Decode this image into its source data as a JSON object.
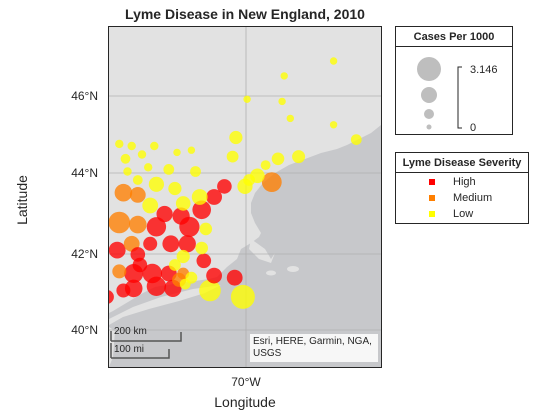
{
  "title": "Lyme Disease in New England, 2010",
  "axes": {
    "xlabel": "Longitude",
    "ylabel": "Latitude",
    "yticks": [
      "46°N",
      "44°N",
      "42°N",
      "40°N"
    ],
    "xticks": [
      "70°W"
    ]
  },
  "scale_bar": {
    "km": "200 km",
    "mi": "100 mi"
  },
  "attribution": "Esri, HERE, Garmin, NGA, USGS",
  "legend_size": {
    "title": "Cases Per 1000",
    "max_label": "3.146",
    "min_label": "0"
  },
  "legend_severity": {
    "title": "Lyme Disease Severity",
    "items": [
      {
        "label": "High",
        "color": "#ff0000"
      },
      {
        "label": "Medium",
        "color": "#ff7f00"
      },
      {
        "label": "Low",
        "color": "#ffff00"
      }
    ]
  },
  "colors": {
    "land": "#e2e2e2",
    "water": "#c7c8cb",
    "bubble_high": "#ff0000",
    "bubble_medium": "#ff7f00",
    "bubble_low": "#ffff00"
  },
  "chart_data": {
    "type": "scatter",
    "encoding": "bubble map: color = severity class, size = cases per 1000",
    "size_range": [
      0,
      3.146
    ],
    "axes_ranges": {
      "lat": [
        39.6,
        47.6
      ],
      "lon": [
        -73.3,
        -66.7
      ]
    },
    "points": [
      {
        "lon": -67.85,
        "lat": 46.8,
        "cases": 0.05,
        "severity": "Low"
      },
      {
        "lon": -69.05,
        "lat": 46.45,
        "cases": 0.05,
        "severity": "Low"
      },
      {
        "lon": -69.95,
        "lat": 45.9,
        "cases": 0.05,
        "severity": "Low"
      },
      {
        "lon": -69.1,
        "lat": 45.85,
        "cases": 0.05,
        "severity": "Low"
      },
      {
        "lon": -68.9,
        "lat": 45.45,
        "cases": 0.05,
        "severity": "Low"
      },
      {
        "lon": -67.85,
        "lat": 45.3,
        "cases": 0.05,
        "severity": "Low"
      },
      {
        "lon": -70.22,
        "lat": 45.0,
        "cases": 0.6,
        "severity": "Low"
      },
      {
        "lon": -67.3,
        "lat": 44.95,
        "cases": 0.3,
        "severity": "Low"
      },
      {
        "lon": -70.3,
        "lat": 44.55,
        "cases": 0.4,
        "severity": "Low"
      },
      {
        "lon": -69.2,
        "lat": 44.5,
        "cases": 0.5,
        "severity": "Low"
      },
      {
        "lon": -68.7,
        "lat": 44.55,
        "cases": 0.55,
        "severity": "Low"
      },
      {
        "lon": -69.5,
        "lat": 44.35,
        "cases": 0.2,
        "severity": "Low"
      },
      {
        "lon": -69.7,
        "lat": 44.1,
        "cases": 0.8,
        "severity": "Low"
      },
      {
        "lon": -69.35,
        "lat": 43.95,
        "cases": 1.9,
        "severity": "Medium"
      },
      {
        "lon": -70.0,
        "lat": 43.85,
        "cases": 0.9,
        "severity": "Low"
      },
      {
        "lon": -69.9,
        "lat": 44.0,
        "cases": 0.4,
        "severity": "Low"
      },
      {
        "lon": -70.5,
        "lat": 43.85,
        "cases": 0.8,
        "severity": "High"
      },
      {
        "lon": -70.75,
        "lat": 43.6,
        "cases": 1.0,
        "severity": "High"
      },
      {
        "lon": -71.3,
        "lat": 44.7,
        "cases": 0.05,
        "severity": "Low"
      },
      {
        "lon": -71.65,
        "lat": 44.65,
        "cases": 0.05,
        "severity": "Low"
      },
      {
        "lon": -72.2,
        "lat": 44.8,
        "cases": 0.1,
        "severity": "Low"
      },
      {
        "lon": -72.75,
        "lat": 44.8,
        "cases": 0.1,
        "severity": "Low"
      },
      {
        "lon": -73.05,
        "lat": 44.85,
        "cases": 0.1,
        "severity": "Low"
      },
      {
        "lon": -72.5,
        "lat": 44.6,
        "cases": 0.1,
        "severity": "Low"
      },
      {
        "lon": -72.9,
        "lat": 44.5,
        "cases": 0.2,
        "severity": "Low"
      },
      {
        "lon": -72.35,
        "lat": 44.3,
        "cases": 0.1,
        "severity": "Low"
      },
      {
        "lon": -72.85,
        "lat": 44.2,
        "cases": 0.1,
        "severity": "Low"
      },
      {
        "lon": -71.85,
        "lat": 44.25,
        "cases": 0.3,
        "severity": "Low"
      },
      {
        "lon": -71.2,
        "lat": 44.2,
        "cases": 0.3,
        "severity": "Low"
      },
      {
        "lon": -72.6,
        "lat": 44.0,
        "cases": 0.2,
        "severity": "Low"
      },
      {
        "lon": -71.7,
        "lat": 43.8,
        "cases": 0.6,
        "severity": "Low"
      },
      {
        "lon": -71.1,
        "lat": 43.6,
        "cases": 1.0,
        "severity": "Low"
      },
      {
        "lon": -71.5,
        "lat": 43.45,
        "cases": 0.8,
        "severity": "Low"
      },
      {
        "lon": -72.15,
        "lat": 43.9,
        "cases": 0.9,
        "severity": "Low"
      },
      {
        "lon": -72.95,
        "lat": 43.7,
        "cases": 1.4,
        "severity": "Medium"
      },
      {
        "lon": -72.3,
        "lat": 43.4,
        "cases": 1.0,
        "severity": "Low"
      },
      {
        "lon": -72.6,
        "lat": 43.65,
        "cases": 1.0,
        "severity": "Medium"
      },
      {
        "lon": -71.05,
        "lat": 43.3,
        "cases": 1.6,
        "severity": "High"
      },
      {
        "lon": -71.55,
        "lat": 43.15,
        "cases": 1.3,
        "severity": "High"
      },
      {
        "lon": -71.95,
        "lat": 43.2,
        "cases": 1.1,
        "severity": "High"
      },
      {
        "lon": -73.05,
        "lat": 43.0,
        "cases": 2.4,
        "severity": "Medium"
      },
      {
        "lon": -72.6,
        "lat": 42.95,
        "cases": 1.4,
        "severity": "Medium"
      },
      {
        "lon": -72.15,
        "lat": 42.9,
        "cases": 1.8,
        "severity": "High"
      },
      {
        "lon": -71.35,
        "lat": 42.9,
        "cases": 2.0,
        "severity": "High"
      },
      {
        "lon": -70.95,
        "lat": 42.85,
        "cases": 0.5,
        "severity": "Low"
      },
      {
        "lon": -72.75,
        "lat": 42.5,
        "cases": 1.0,
        "severity": "Medium"
      },
      {
        "lon": -72.3,
        "lat": 42.5,
        "cases": 0.7,
        "severity": "High"
      },
      {
        "lon": -71.8,
        "lat": 42.5,
        "cases": 1.2,
        "severity": "High"
      },
      {
        "lon": -71.4,
        "lat": 42.5,
        "cases": 1.3,
        "severity": "High"
      },
      {
        "lon": -71.05,
        "lat": 42.4,
        "cases": 0.5,
        "severity": "Low"
      },
      {
        "lon": -73.1,
        "lat": 42.35,
        "cases": 1.2,
        "severity": "High"
      },
      {
        "lon": -72.6,
        "lat": 42.25,
        "cases": 0.8,
        "severity": "High"
      },
      {
        "lon": -71.5,
        "lat": 42.2,
        "cases": 0.6,
        "severity": "Low"
      },
      {
        "lon": -71.0,
        "lat": 42.1,
        "cases": 0.8,
        "severity": "High"
      },
      {
        "lon": -71.7,
        "lat": 42.0,
        "cases": 0.4,
        "severity": "Low"
      },
      {
        "lon": -72.55,
        "lat": 42.0,
        "cases": 0.8,
        "severity": "High"
      },
      {
        "lon": -73.05,
        "lat": 41.85,
        "cases": 0.7,
        "severity": "Medium"
      },
      {
        "lon": -72.7,
        "lat": 41.8,
        "cases": 1.7,
        "severity": "High"
      },
      {
        "lon": -72.25,
        "lat": 41.8,
        "cases": 1.8,
        "severity": "High"
      },
      {
        "lon": -71.85,
        "lat": 41.8,
        "cases": 1.0,
        "severity": "High"
      },
      {
        "lon": -71.5,
        "lat": 41.8,
        "cases": 0.4,
        "severity": "Medium"
      },
      {
        "lon": -71.3,
        "lat": 41.7,
        "cases": 0.4,
        "severity": "Low"
      },
      {
        "lon": -71.6,
        "lat": 41.65,
        "cases": 0.7,
        "severity": "Medium"
      },
      {
        "lon": -71.45,
        "lat": 41.55,
        "cases": 0.3,
        "severity": "Low"
      },
      {
        "lon": -70.75,
        "lat": 41.75,
        "cases": 1.0,
        "severity": "High"
      },
      {
        "lon": -70.25,
        "lat": 41.7,
        "cases": 1.0,
        "severity": "High"
      },
      {
        "lon": -72.7,
        "lat": 41.45,
        "cases": 1.4,
        "severity": "High"
      },
      {
        "lon": -72.15,
        "lat": 41.5,
        "cases": 1.8,
        "severity": "High"
      },
      {
        "lon": -71.75,
        "lat": 41.45,
        "cases": 1.3,
        "severity": "High"
      },
      {
        "lon": -70.85,
        "lat": 41.4,
        "cases": 2.4,
        "severity": "Low"
      },
      {
        "lon": -73.35,
        "lat": 41.25,
        "cases": 0.7,
        "severity": "High"
      },
      {
        "lon": -72.95,
        "lat": 41.4,
        "cases": 0.7,
        "severity": "High"
      },
      {
        "lon": -70.05,
        "lat": 41.25,
        "cases": 3.146,
        "severity": "Low"
      }
    ]
  }
}
